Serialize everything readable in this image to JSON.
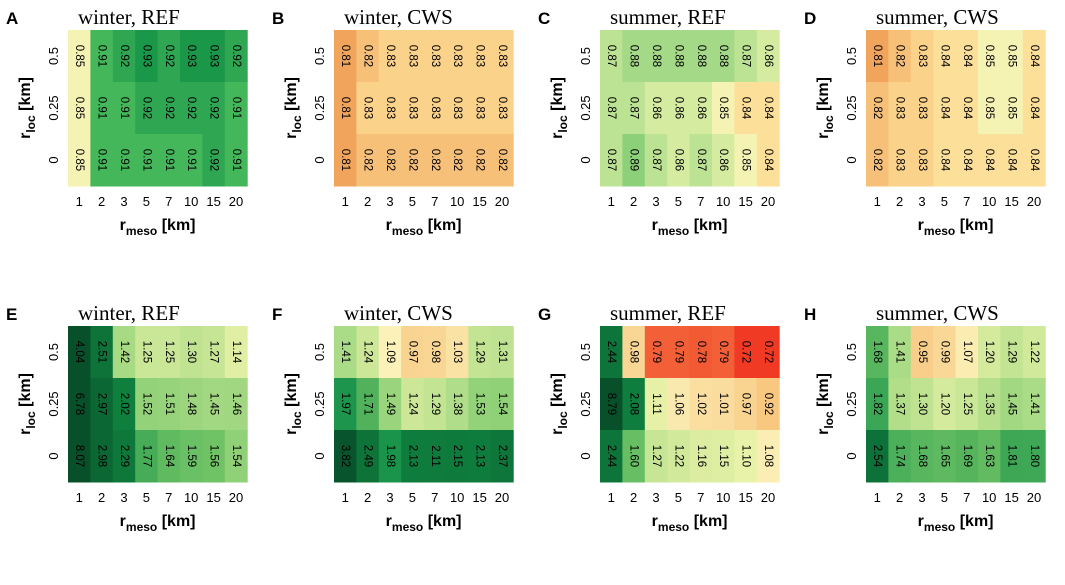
{
  "chart_data": [
    {
      "type": "heatmap",
      "panel": "A",
      "title": "winter, REF",
      "xlabel": "r",
      "xlabel_sub": "meso",
      "xlabel_unit": "[km]",
      "ylabel": "r",
      "ylabel_sub": "loc",
      "ylabel_unit": "[km]",
      "x_categories": [
        "1",
        "2",
        "3",
        "5",
        "7",
        "10",
        "15",
        "20"
      ],
      "y_categories": [
        "0.5",
        "0.25",
        "0"
      ],
      "values": [
        [
          "0.85",
          "0.91",
          "0.92",
          "0.93",
          "0.92",
          "0.93",
          "0.93",
          "0.92"
        ],
        [
          "0.85",
          "0.91",
          "0.91",
          "0.92",
          "0.92",
          "0.92",
          "0.92",
          "0.91"
        ],
        [
          "0.85",
          "0.91",
          "0.91",
          "0.91",
          "0.91",
          "0.91",
          "0.92",
          "0.91"
        ]
      ]
    },
    {
      "type": "heatmap",
      "panel": "B",
      "title": "winter, CWS",
      "xlabel": "r",
      "xlabel_sub": "meso",
      "xlabel_unit": "[km]",
      "ylabel": "r",
      "ylabel_sub": "loc",
      "ylabel_unit": "[km]",
      "x_categories": [
        "1",
        "2",
        "3",
        "5",
        "7",
        "10",
        "15",
        "20"
      ],
      "y_categories": [
        "0.5",
        "0.25",
        "0"
      ],
      "values": [
        [
          "0.81",
          "0.82",
          "0.83",
          "0.83",
          "0.83",
          "0.83",
          "0.83",
          "0.83"
        ],
        [
          "0.81",
          "0.83",
          "0.83",
          "0.83",
          "0.83",
          "0.83",
          "0.83",
          "0.83"
        ],
        [
          "0.81",
          "0.82",
          "0.82",
          "0.82",
          "0.82",
          "0.82",
          "0.82",
          "0.82"
        ]
      ]
    },
    {
      "type": "heatmap",
      "panel": "C",
      "title": "summer, REF",
      "xlabel": "r",
      "xlabel_sub": "meso",
      "xlabel_unit": "[km]",
      "ylabel": "r",
      "ylabel_sub": "loc",
      "ylabel_unit": "[km]",
      "x_categories": [
        "1",
        "2",
        "3",
        "5",
        "7",
        "10",
        "15",
        "20"
      ],
      "y_categories": [
        "0.5",
        "0.25",
        "0"
      ],
      "values": [
        [
          "0.87",
          "0.88",
          "0.88",
          "0.88",
          "0.88",
          "0.88",
          "0.87",
          "0.86"
        ],
        [
          "0.87",
          "0.87",
          "0.86",
          "0.86",
          "0.86",
          "0.85",
          "0.84",
          "0.84"
        ],
        [
          "0.87",
          "0.89",
          "0.87",
          "0.86",
          "0.87",
          "0.86",
          "0.85",
          "0.84"
        ]
      ]
    },
    {
      "type": "heatmap",
      "panel": "D",
      "title": "summer, CWS",
      "xlabel": "r",
      "xlabel_sub": "meso",
      "xlabel_unit": "[km]",
      "ylabel": "r",
      "ylabel_sub": "loc",
      "ylabel_unit": "[km]",
      "x_categories": [
        "1",
        "2",
        "3",
        "5",
        "7",
        "10",
        "15",
        "20"
      ],
      "y_categories": [
        "0.5",
        "0.25",
        "0"
      ],
      "values": [
        [
          "0.81",
          "0.82",
          "0.83",
          "0.84",
          "0.84",
          "0.85",
          "0.85",
          "0.84"
        ],
        [
          "0.82",
          "0.83",
          "0.83",
          "0.84",
          "0.84",
          "0.85",
          "0.85",
          "0.84"
        ],
        [
          "0.82",
          "0.83",
          "0.83",
          "0.84",
          "0.84",
          "0.84",
          "0.84",
          "0.84"
        ]
      ]
    },
    {
      "type": "heatmap",
      "panel": "E",
      "title": "winter, REF",
      "xlabel": "r",
      "xlabel_sub": "meso",
      "xlabel_unit": "[km]",
      "ylabel": "r",
      "ylabel_sub": "loc",
      "ylabel_unit": "[km]",
      "x_categories": [
        "1",
        "2",
        "3",
        "5",
        "7",
        "10",
        "15",
        "20"
      ],
      "y_categories": [
        "0.5",
        "0.25",
        "0"
      ],
      "values": [
        [
          "4.04",
          "2.51",
          "1.42",
          "1.25",
          "1.25",
          "1.30",
          "1.27",
          "1.14"
        ],
        [
          "6.78",
          "2.97",
          "2.02",
          "1.52",
          "1.51",
          "1.48",
          "1.45",
          "1.46"
        ],
        [
          "8.07",
          "2.98",
          "2.29",
          "1.77",
          "1.64",
          "1.59",
          "1.56",
          "1.54"
        ]
      ]
    },
    {
      "type": "heatmap",
      "panel": "F",
      "title": "winter, CWS",
      "xlabel": "r",
      "xlabel_sub": "meso",
      "xlabel_unit": "[km]",
      "ylabel": "r",
      "ylabel_sub": "loc",
      "ylabel_unit": "[km]",
      "x_categories": [
        "1",
        "2",
        "3",
        "5",
        "7",
        "10",
        "15",
        "20"
      ],
      "y_categories": [
        "0.5",
        "0.25",
        "0"
      ],
      "values": [
        [
          "1.41",
          "1.24",
          "1.09",
          "0.97",
          "0.98",
          "1.03",
          "1.29",
          "1.31"
        ],
        [
          "1.97",
          "1.71",
          "1.49",
          "1.24",
          "1.29",
          "1.38",
          "1.53",
          "1.54"
        ],
        [
          "3.82",
          "2.49",
          "1.98",
          "2.13",
          "2.11",
          "2.15",
          "2.13",
          "2.37"
        ]
      ]
    },
    {
      "type": "heatmap",
      "panel": "G",
      "title": "summer, REF",
      "xlabel": "r",
      "xlabel_sub": "meso",
      "xlabel_unit": "[km]",
      "ylabel": "r",
      "ylabel_sub": "loc",
      "ylabel_unit": "[km]",
      "x_categories": [
        "1",
        "2",
        "3",
        "5",
        "7",
        "10",
        "15",
        "20"
      ],
      "y_categories": [
        "0.5",
        "0.25",
        "0"
      ],
      "values": [
        [
          "2.44",
          "0.98",
          "0.79",
          "0.79",
          "0.78",
          "0.79",
          "0.72",
          "0.72"
        ],
        [
          "8.79",
          "2.08",
          "1.11",
          "1.06",
          "1.02",
          "1.01",
          "0.97",
          "0.92"
        ],
        [
          "2.44",
          "1.60",
          "1.27",
          "1.22",
          "1.16",
          "1.15",
          "1.10",
          "1.08"
        ]
      ]
    },
    {
      "type": "heatmap",
      "panel": "H",
      "title": "summer, CWS",
      "xlabel": "r",
      "xlabel_sub": "meso",
      "xlabel_unit": "[km]",
      "ylabel": "r",
      "ylabel_sub": "loc",
      "ylabel_unit": "[km]",
      "x_categories": [
        "1",
        "2",
        "3",
        "5",
        "7",
        "10",
        "15",
        "20"
      ],
      "y_categories": [
        "0.5",
        "0.25",
        "0"
      ],
      "values": [
        [
          "1.68",
          "1.41",
          "0.95",
          "0.99",
          "1.07",
          "1.20",
          "1.29",
          "1.22"
        ],
        [
          "1.82",
          "1.37",
          "1.30",
          "1.20",
          "1.25",
          "1.35",
          "1.45",
          "1.41"
        ],
        [
          "2.54",
          "1.74",
          "1.68",
          "1.65",
          "1.69",
          "1.63",
          "1.81",
          "1.80"
        ]
      ]
    }
  ],
  "palette": {
    "top_row": {
      "low": "#f09a55",
      "high": "#0f9b48"
    },
    "bottom_row": {
      "low": "#f4402a",
      "mid": "#fbf6bc",
      "high": "#0a5a2c"
    }
  }
}
